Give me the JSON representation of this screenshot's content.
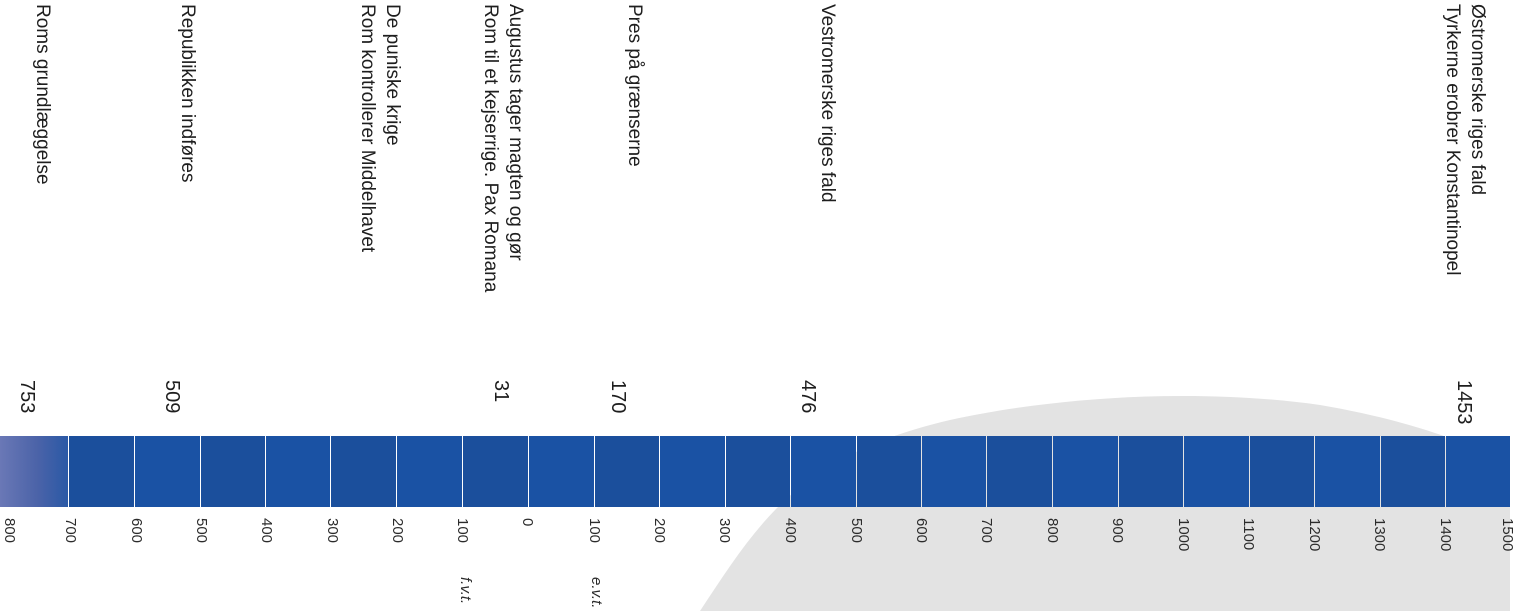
{
  "colors": {
    "band": "#1a52a4",
    "background_shape": "#e3e3e3",
    "text": "#1e1e1e"
  },
  "timeline": {
    "axis_ticks": [
      "800",
      "700",
      "600",
      "500",
      "400",
      "300",
      "200",
      "100",
      "0",
      "100",
      "200",
      "300",
      "400",
      "500",
      "600",
      "700",
      "800",
      "900",
      "1000",
      "1100",
      "1200",
      "1300",
      "1400",
      "1500"
    ],
    "era_labels": {
      "bce": "f.v.t.",
      "ce": "e.v.t."
    },
    "events": [
      {
        "year": "753",
        "lines": [
          "Roms grundlæggelse"
        ]
      },
      {
        "year": "509",
        "lines": [
          "Republikken indføres"
        ]
      },
      {
        "year": "",
        "lines": [
          "De puniske krige",
          "Rom kontrollerer Middelhavet"
        ]
      },
      {
        "year": "31",
        "lines": [
          "Augustus tager magten og gør",
          "Rom til et kejserrige. Pax Romana"
        ]
      },
      {
        "year": "170",
        "lines": [
          "Pres på grænserne"
        ]
      },
      {
        "year": "476",
        "lines": [
          "Vestromerske riges fald"
        ]
      },
      {
        "year": "1453",
        "lines": [
          "Østromerske riges fald",
          "Tyrkerne erobrer Konstantinopel"
        ]
      }
    ]
  }
}
